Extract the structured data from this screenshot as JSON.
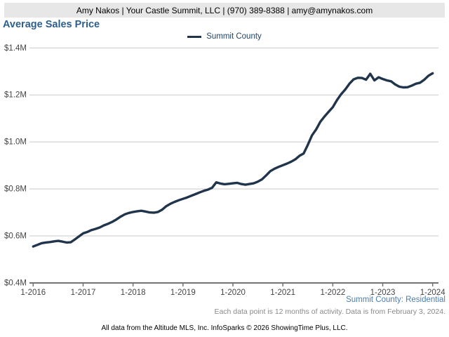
{
  "header": {
    "contact": "Amy Nakos | Your Castle Summit, LLC | (970) 389-8388 | amy@amynakos.com"
  },
  "title": "Average Sales Price",
  "legend": {
    "label": "Summit County"
  },
  "footnotes": {
    "series": "Summit County: Residential",
    "note": "Each data point is 12 months of activity. Data is from February 3, 2024.",
    "attribution": "All data from the Altitude MLS, Inc. InfoSparks © 2026 ShowingTime Plus, LLC."
  },
  "colors": {
    "line": "#20344B",
    "title": "#2D5F8E",
    "series_note": "#4A7EB0",
    "note": "#8A8A8A",
    "header_bg": "#E7E7E7",
    "grid": "#C9C9C9",
    "axis": "#737373",
    "tick": "#444444"
  },
  "chart_data": {
    "type": "line",
    "title": "Average Sales Price",
    "y_unit": "USD millions",
    "ylim": [
      0.4,
      1.4
    ],
    "grid": "horizontal",
    "legend_position": "top-center",
    "x_start": "1-2016",
    "x_interval": "monthly",
    "x_tick_every": 12,
    "x_tick_labels": [
      "1-2016",
      "1-2017",
      "1-2018",
      "1-2019",
      "1-2020",
      "1-2021",
      "1-2022",
      "1-2023",
      "1-2024"
    ],
    "y_ticks": [
      {
        "label": "$0.4M",
        "value": 0.4
      },
      {
        "label": "$0.6M",
        "value": 0.6
      },
      {
        "label": "$0.8M",
        "value": 0.8
      },
      {
        "label": "$1.0M",
        "value": 1.0
      },
      {
        "label": "$1.2M",
        "value": 1.2
      },
      {
        "label": "$1.4M",
        "value": 1.4
      }
    ],
    "series": [
      {
        "name": "Summit County",
        "values": [
          0.555,
          0.562,
          0.569,
          0.572,
          0.574,
          0.577,
          0.579,
          0.576,
          0.572,
          0.573,
          0.585,
          0.598,
          0.611,
          0.617,
          0.625,
          0.63,
          0.636,
          0.645,
          0.652,
          0.66,
          0.67,
          0.682,
          0.692,
          0.698,
          0.702,
          0.705,
          0.707,
          0.704,
          0.7,
          0.699,
          0.702,
          0.712,
          0.727,
          0.737,
          0.745,
          0.752,
          0.758,
          0.764,
          0.771,
          0.778,
          0.785,
          0.792,
          0.797,
          0.805,
          0.828,
          0.823,
          0.82,
          0.822,
          0.824,
          0.826,
          0.821,
          0.818,
          0.821,
          0.824,
          0.831,
          0.841,
          0.858,
          0.876,
          0.886,
          0.894,
          0.901,
          0.908,
          0.916,
          0.926,
          0.941,
          0.951,
          0.988,
          1.028,
          1.053,
          1.086,
          1.108,
          1.128,
          1.148,
          1.178,
          1.203,
          1.223,
          1.248,
          1.266,
          1.273,
          1.272,
          1.265,
          1.29,
          1.262,
          1.275,
          1.268,
          1.262,
          1.258,
          1.245,
          1.235,
          1.232,
          1.233,
          1.24,
          1.248,
          1.252,
          1.265,
          1.282,
          1.292
        ]
      }
    ]
  }
}
